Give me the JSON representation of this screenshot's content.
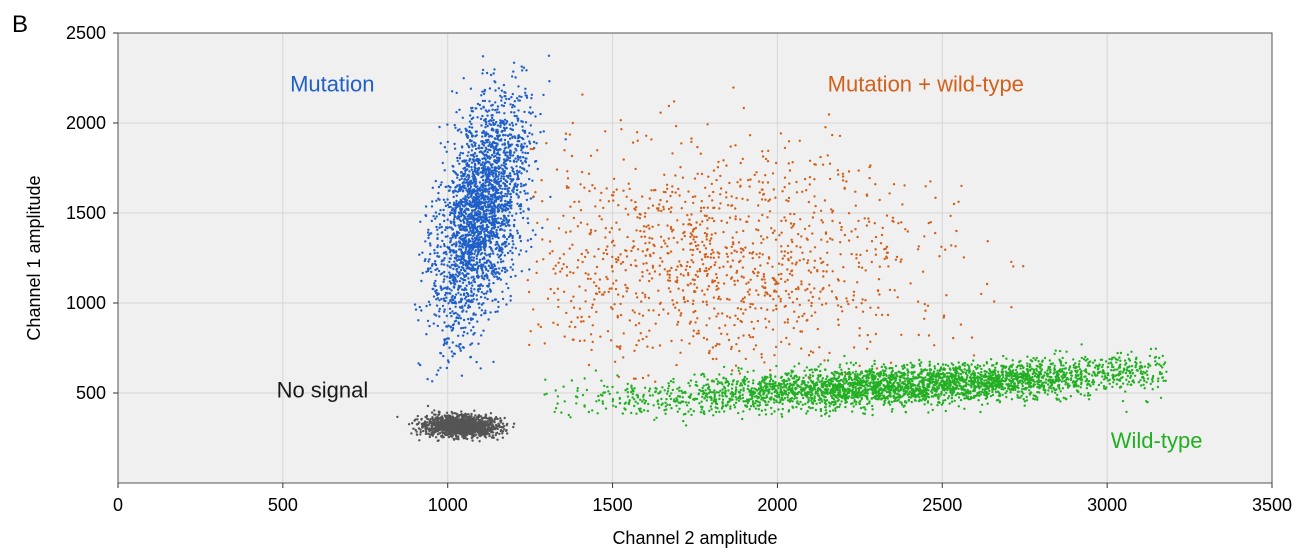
{
  "chart_data": {
    "type": "scatter",
    "panel_label": "B",
    "xlabel": "Channel 2 amplitude",
    "ylabel": "Channel 1 amplitude",
    "xlim": [
      0,
      3500
    ],
    "ylim": [
      0,
      2500
    ],
    "x_ticks": [
      0,
      500,
      1000,
      1500,
      2000,
      2500,
      3000,
      3500
    ],
    "y_ticks": [
      500,
      1000,
      1500,
      2000,
      2500
    ],
    "grid": true,
    "plot_background": "#f0f0f0",
    "annotations": [
      {
        "text": "Mutation",
        "x": 650,
        "y": 2220,
        "color": "#1f5fc8"
      },
      {
        "text": "Mutation + wild-type",
        "x": 2450,
        "y": 2220,
        "color": "#d2601a"
      },
      {
        "text": "No signal",
        "x": 620,
        "y": 520,
        "color": "#1a1a1a"
      },
      {
        "text": "Wild-type",
        "x": 3150,
        "y": 240,
        "color": "#22b022"
      }
    ],
    "clusters": [
      {
        "color": "#1f5fc8",
        "count": 2600,
        "x_center": 1100,
        "y_center": 1500,
        "x_spread": 60,
        "y_spread": 330,
        "slope": 0.0022,
        "x_range": [
          900,
          1420
        ],
        "y_range": [
          560,
          2400
        ]
      },
      {
        "color": "#d2601a",
        "count": 1300,
        "x_center": 1800,
        "y_center": 1250,
        "x_spread": 350,
        "y_spread": 330,
        "slope": 0,
        "x_range": [
          1240,
          2760
        ],
        "y_range": [
          560,
          2250
        ]
      },
      {
        "color": "#22b022",
        "count": 3500,
        "x_center": 2400,
        "y_center": 545,
        "x_spread": 420,
        "y_spread": 55,
        "slope": 0.09,
        "x_range": [
          1290,
          3180
        ],
        "y_range": [
          300,
          940
        ]
      },
      {
        "color": "#555555",
        "count": 1600,
        "x_center": 1040,
        "y_center": 315,
        "x_spread": 55,
        "y_spread": 28,
        "slope": -0.05,
        "x_range": [
          730,
          1300
        ],
        "y_range": [
          200,
          430
        ]
      }
    ]
  }
}
